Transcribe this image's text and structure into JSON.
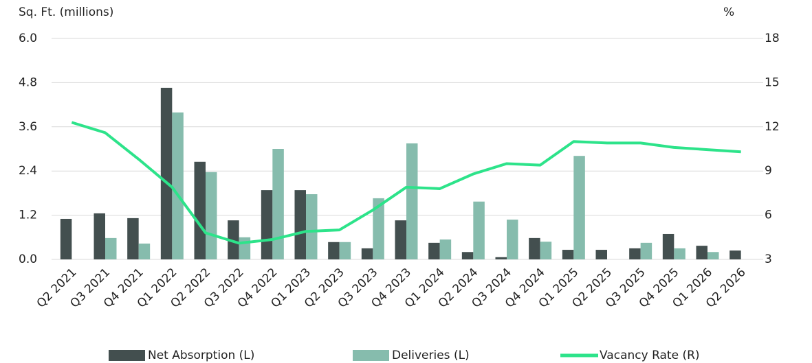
{
  "chart_data": {
    "type": "bar_line",
    "y_label": "Sq. Ft. (millions)",
    "y2_label": "%",
    "categories": [
      "Q2 2021",
      "Q3 2021",
      "Q4 2021",
      "Q1 2022",
      "Q2 2022",
      "Q3 2022",
      "Q4 2022",
      "Q1 2023",
      "Q2 2023",
      "Q3 2023",
      "Q4 2023",
      "Q1 2024",
      "Q2 2024",
      "Q3 2024",
      "Q4 2024",
      "Q1 2025",
      "Q2 2025",
      "Q3 2025",
      "Q4 2025",
      "Q1 2026",
      "Q2 2026"
    ],
    "series": [
      {
        "name": "Net Absorption (L)",
        "type": "bar",
        "axis": "y",
        "color": "#434f4f",
        "values": [
          1.1,
          1.25,
          1.12,
          4.66,
          2.65,
          1.06,
          1.88,
          1.88,
          0.47,
          0.3,
          1.06,
          0.45,
          0.2,
          0.06,
          0.58,
          0.26,
          0.26,
          0.3,
          0.69,
          0.37,
          0.24
        ]
      },
      {
        "name": "Deliveries (L)",
        "type": "bar",
        "axis": "y",
        "color": "#86bcad",
        "values": [
          null,
          0.58,
          0.43,
          3.99,
          2.37,
          0.6,
          3.0,
          1.77,
          0.47,
          1.66,
          3.15,
          0.54,
          1.57,
          1.08,
          0.48,
          2.81,
          null,
          0.45,
          0.3,
          0.2,
          null
        ]
      },
      {
        "name": "Vacancy Rate (R)",
        "type": "line",
        "axis": "y2",
        "color": "#2de38a",
        "values": [
          12.3,
          11.6,
          9.8,
          7.9,
          4.8,
          4.1,
          4.35,
          4.9,
          5.0,
          6.35,
          7.9,
          7.8,
          8.8,
          9.5,
          9.4,
          11.0,
          10.9,
          10.9,
          10.6,
          10.45,
          10.3
        ]
      }
    ],
    "ylim": [
      0,
      6
    ],
    "yticks": [
      {
        "value": 0,
        "label": "0.0"
      },
      1.2,
      2.4,
      3.6,
      4.8,
      {
        "value": 6,
        "label": "6.0"
      }
    ],
    "y2lim": [
      3,
      18
    ],
    "y2ticks": [
      3,
      6,
      9,
      12,
      15,
      18
    ],
    "grid": true,
    "legend": "bottom"
  }
}
